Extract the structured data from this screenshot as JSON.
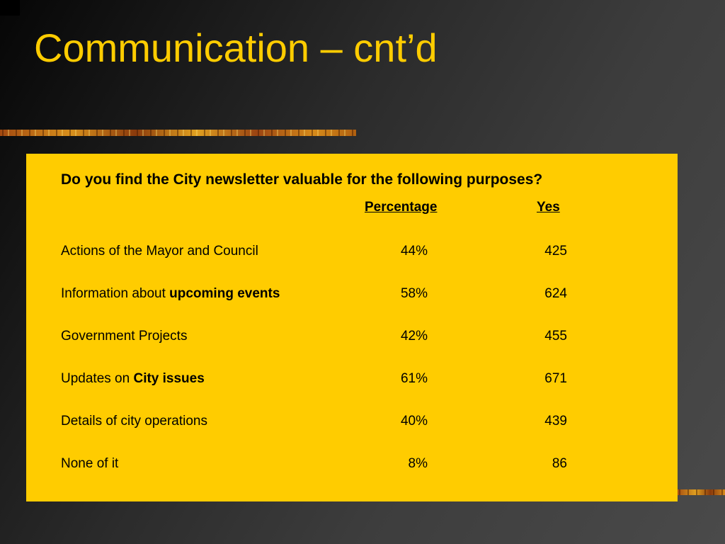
{
  "slide": {
    "title": "Communication – cnt’d"
  },
  "question": "Do you find the City newsletter valuable for the following purposes?",
  "columns": {
    "percentage": "Percentage",
    "yes": "Yes"
  },
  "rows": [
    {
      "label": "Actions of the Mayor and Council",
      "label_bold": "",
      "percentage": "44%",
      "yes": "425"
    },
    {
      "label": "Information about ",
      "label_bold": "upcoming events",
      "percentage": "58%",
      "yes": "624"
    },
    {
      "label": "Government Projects",
      "label_bold": "",
      "percentage": "42%",
      "yes": "455"
    },
    {
      "label": "Updates on ",
      "label_bold": "City issues",
      "percentage": "61%",
      "yes": "671"
    },
    {
      "label": "Details of city operations",
      "label_bold": "",
      "percentage": "40%",
      "yes": "439"
    },
    {
      "label": "None of it",
      "label_bold": "",
      "percentage": "8%",
      "yes": "86"
    }
  ],
  "colors": {
    "title": "#ffcc00",
    "panel": "#ffcc00",
    "background": "#3d3d3d"
  }
}
